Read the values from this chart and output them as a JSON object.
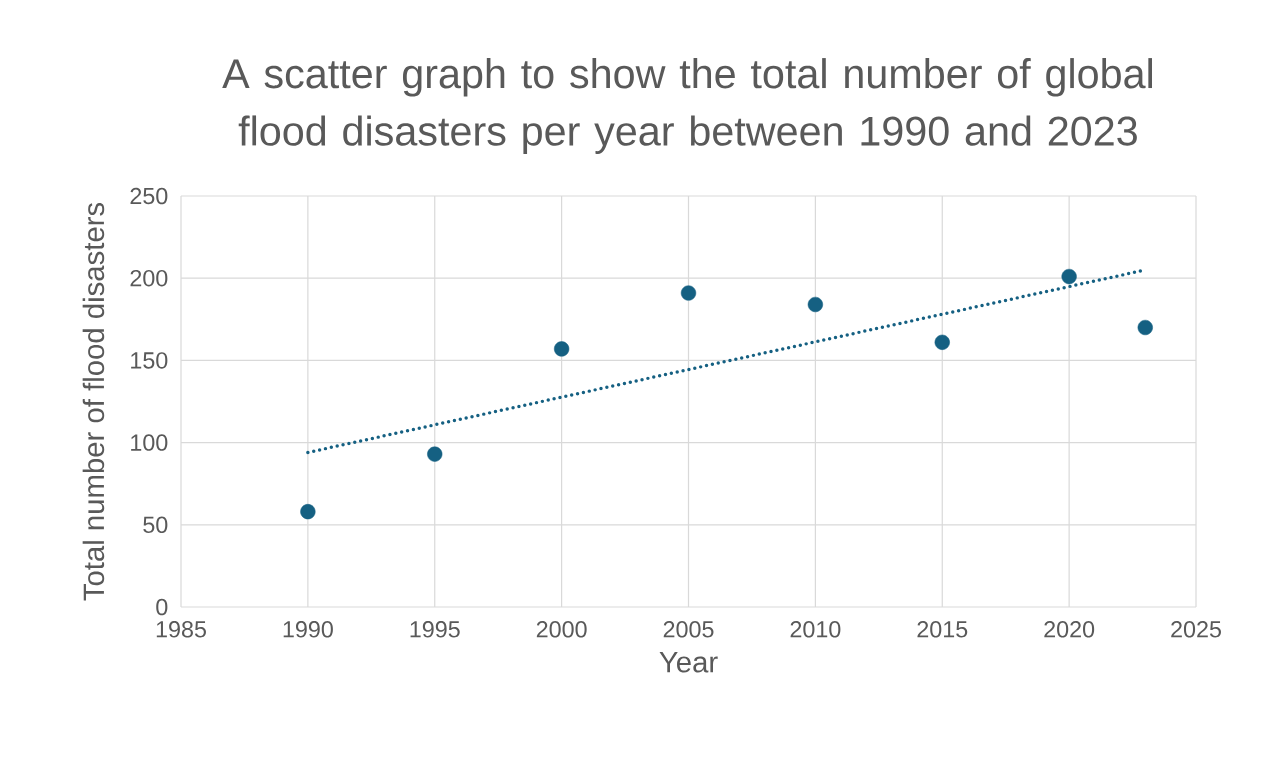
{
  "chart_data": {
    "type": "scatter",
    "title": "A scatter graph to show the total number of global flood disasters per year between 1990 and 2023",
    "xlabel": "Year",
    "ylabel": "Total number of flood disasters",
    "xlim": [
      1985,
      2025
    ],
    "ylim": [
      0,
      250
    ],
    "xticks": [
      1985,
      1990,
      1995,
      2000,
      2005,
      2010,
      2015,
      2020,
      2025
    ],
    "yticks": [
      0,
      50,
      100,
      150,
      200,
      250
    ],
    "grid": true,
    "marker": "circle",
    "series": [
      {
        "type": "scatter",
        "color": "#156082",
        "x": [
          1990,
          1995,
          2000,
          2005,
          2010,
          2015,
          2020,
          2023
        ],
        "values": [
          58,
          93,
          157,
          191,
          184,
          161,
          201,
          170
        ]
      },
      {
        "type": "line",
        "line_style": "dotted",
        "marker": "none",
        "color": "#156082",
        "x": [
          1990,
          2023
        ],
        "values": [
          94,
          205
        ]
      }
    ]
  }
}
